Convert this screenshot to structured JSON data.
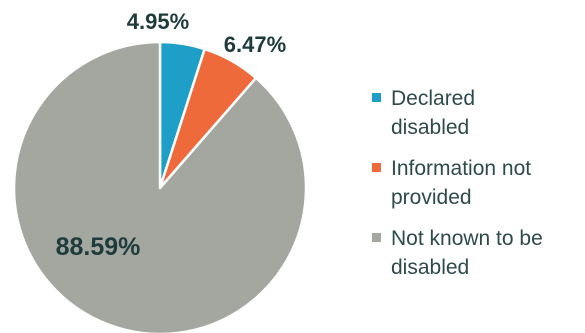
{
  "chart_data": {
    "type": "pie",
    "categories": [
      "Declared disabled",
      "Information not provided",
      "Not known to be disabled"
    ],
    "values": [
      4.95,
      6.47,
      88.59
    ],
    "labels": [
      "4.95%",
      "6.47%",
      "88.59%"
    ],
    "colors": [
      "#1e9fc7",
      "#ef6a3b",
      "#a3a79f"
    ],
    "legend_position": "right",
    "start": "12 o'clock, clockwise"
  },
  "legend": {
    "items": [
      {
        "label_line1": "Declared",
        "label_line2": "disabled"
      },
      {
        "label_line1": "Information not",
        "label_line2": "provided"
      },
      {
        "label_line1": "Not known to be",
        "label_line2": "disabled"
      }
    ]
  }
}
